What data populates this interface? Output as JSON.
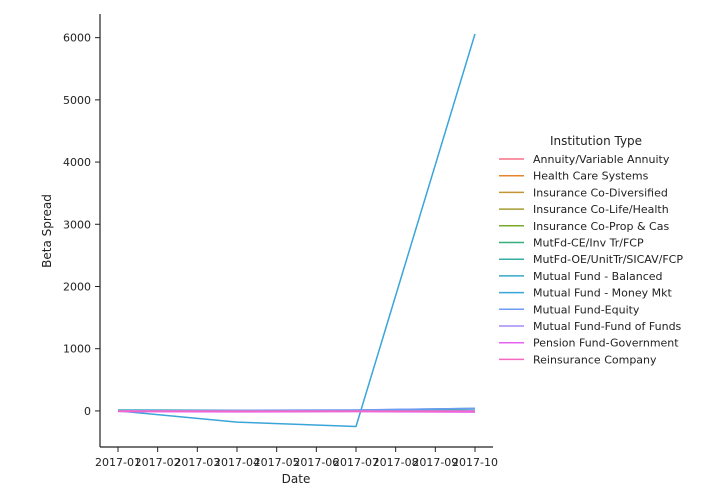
{
  "chart_data": {
    "type": "line",
    "xlabel": "Date",
    "ylabel": "Beta Spread",
    "x": [
      "2017-01",
      "2017-02",
      "2017-03",
      "2017-04",
      "2017-05",
      "2017-06",
      "2017-07",
      "2017-08",
      "2017-09",
      "2017-10"
    ],
    "x_tick_labels": [
      "2017-01",
      "2017-02",
      "2017-03",
      "2017-04",
      "2017-05",
      "2017-06",
      "2017-07",
      "2017-08",
      "2017-09",
      "2017-10"
    ],
    "y_ticks": [
      0,
      1000,
      2000,
      3000,
      4000,
      5000,
      6000
    ],
    "y_tick_labels": [
      "0",
      "1000",
      "2000",
      "3000",
      "4000",
      "5000",
      "6000"
    ],
    "ylim": [
      -580,
      6380
    ],
    "grid": false,
    "legend": {
      "title": "Institution Type",
      "placement": "right"
    },
    "series": [
      {
        "name": "Annuity/Variable Annuity",
        "color": "#f77189",
        "x": [
          "2017-01",
          "2017-04",
          "2017-07",
          "2017-10"
        ],
        "values": [
          5,
          5,
          5,
          5
        ]
      },
      {
        "name": "Health Care Systems",
        "color": "#e6842c",
        "x": [
          "2017-01",
          "2017-04",
          "2017-07",
          "2017-10"
        ],
        "values": [
          10,
          8,
          6,
          8
        ]
      },
      {
        "name": "Insurance Co-Diversified",
        "color": "#c39532",
        "x": [
          "2017-01",
          "2017-04",
          "2017-07",
          "2017-10"
        ],
        "values": [
          4,
          2,
          3,
          4
        ]
      },
      {
        "name": "Insurance Co-Life/Health",
        "color": "#a59c31",
        "x": [
          "2017-01",
          "2017-04",
          "2017-07",
          "2017-10"
        ],
        "values": [
          6,
          5,
          4,
          5
        ]
      },
      {
        "name": "Insurance Co-Prop & Cas",
        "color": "#7aa831",
        "x": [
          "2017-01",
          "2017-04",
          "2017-07",
          "2017-10"
        ],
        "values": [
          3,
          2,
          3,
          2
        ]
      },
      {
        "name": "MutFd-CE/Inv Tr/FCP",
        "color": "#33b07a",
        "x": [
          "2017-01",
          "2017-04",
          "2017-07",
          "2017-10"
        ],
        "values": [
          5,
          4,
          4,
          6
        ]
      },
      {
        "name": "MutFd-OE/UnitTr/SICAV/FCP",
        "color": "#35aca4",
        "x": [
          "2017-01",
          "2017-04",
          "2017-07",
          "2017-10"
        ],
        "values": [
          8,
          6,
          7,
          10
        ]
      },
      {
        "name": "Mutual Fund - Balanced",
        "color": "#38a8c5",
        "x": [
          "2017-01",
          "2017-04",
          "2017-07",
          "2017-10"
        ],
        "values": [
          15,
          10,
          12,
          40
        ]
      },
      {
        "name": "Mutual Fund - Money Mkt",
        "color": "#3aa5d9",
        "x": [
          "2017-01",
          "2017-04",
          "2017-07",
          "2017-10"
        ],
        "values": [
          0,
          -180,
          -250,
          6060
        ]
      },
      {
        "name": "Mutual Fund-Equity",
        "color": "#6e9bf4",
        "x": [
          "2017-01",
          "2017-04",
          "2017-07",
          "2017-10"
        ],
        "values": [
          -5,
          10,
          15,
          40
        ]
      },
      {
        "name": "Mutual Fund-Fund of Funds",
        "color": "#a48cf4",
        "x": [
          "2017-01",
          "2017-04",
          "2017-07",
          "2017-10"
        ],
        "values": [
          2,
          0,
          1,
          2
        ]
      },
      {
        "name": "Pension Fund-Government",
        "color": "#e563f0",
        "x": [
          "2017-01",
          "2017-04",
          "2017-07",
          "2017-10"
        ],
        "values": [
          -10,
          -15,
          -12,
          -20
        ]
      },
      {
        "name": "Reinsurance Company",
        "color": "#f668c2",
        "x": [
          "2017-01",
          "2017-04",
          "2017-07",
          "2017-10"
        ],
        "values": [
          -3,
          -5,
          -4,
          -6
        ]
      }
    ]
  }
}
